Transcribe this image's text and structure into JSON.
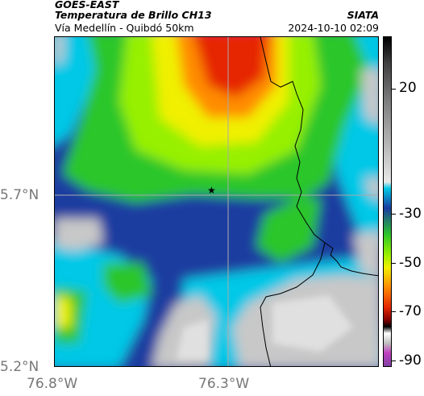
{
  "header": {
    "satellite": "GOES-EAST",
    "product": "Temperatura de Brillo CH13",
    "region": "Vía Medellín - Quibdó 50km",
    "agency": "SIATA",
    "timestamp": "2024-10-10 02:09"
  },
  "axes": {
    "lat_labels": [
      "5.7°N",
      "5.2°N"
    ],
    "lon_labels": [
      "76.8°W",
      "76.3°W"
    ]
  },
  "colorbar": {
    "labels": [
      "20",
      "-30",
      "-50",
      "-70",
      "-90"
    ]
  },
  "marker": {
    "symbol": "★"
  },
  "colors": {
    "warm_gray": "#c8c8c8",
    "cyan": "#00c8e6",
    "blue": "#1a3ca0",
    "green": "#2cc62c",
    "light_green": "#96f000",
    "yellow": "#f0f000",
    "orange": "#ff8c00",
    "red": "#e62800"
  }
}
